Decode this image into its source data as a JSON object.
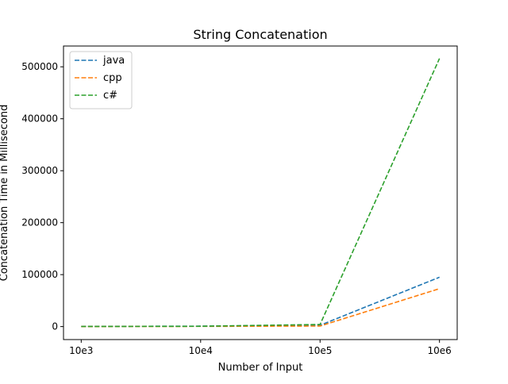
{
  "chart_data": {
    "type": "line",
    "title": "String Concatenation",
    "xlabel": "Number of Input",
    "ylabel": "Concatenation Time in Millisecond",
    "categories": [
      "10e3",
      "10e4",
      "10e5",
      "10e6"
    ],
    "ylim": [
      -25000,
      540000
    ],
    "yticks": [
      0,
      100000,
      200000,
      300000,
      400000,
      500000
    ],
    "ytick_labels": [
      "0",
      "100000",
      "200000",
      "300000",
      "400000",
      "500000"
    ],
    "grid": false,
    "legend_position": "top-left",
    "line_style": "dashed",
    "series": [
      {
        "name": "java",
        "color": "#1f77b4",
        "values": [
          300,
          800,
          2500,
          95000
        ]
      },
      {
        "name": "cpp",
        "color": "#ff7f0e",
        "values": [
          100,
          400,
          1000,
          73000
        ]
      },
      {
        "name": "c#",
        "color": "#2ca02c",
        "values": [
          200,
          600,
          4000,
          516000
        ]
      }
    ]
  }
}
